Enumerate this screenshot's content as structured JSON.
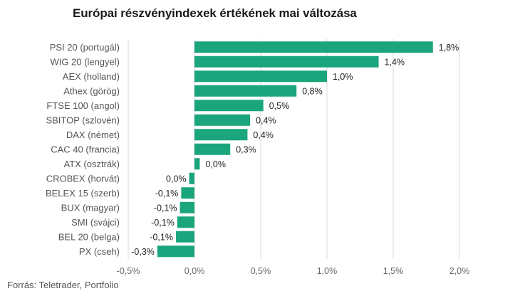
{
  "chart_data": {
    "type": "bar",
    "orientation": "horizontal",
    "title": "Európai részvényindexek értékének mai változása",
    "categories": [
      "PSI 20 (portugál)",
      "WIG 20 (lengyel)",
      "AEX (holland)",
      "Athex (görög)",
      "FTSE 100 (angol)",
      "SBITOP (szlovén)",
      "DAX (német)",
      "CAC 40 (francia)",
      "ATX (osztrák)",
      "CROBEX (horvát)",
      "BELEX 15 (szerb)",
      "BUX (magyar)",
      "SMI (svájci)",
      "BEL 20 (belga)",
      "PX (cseh)"
    ],
    "values": [
      1.8,
      1.39,
      1.0,
      0.77,
      0.52,
      0.42,
      0.4,
      0.27,
      0.04,
      -0.04,
      -0.1,
      -0.11,
      -0.13,
      -0.14,
      -0.28
    ],
    "value_labels": [
      "1,8%",
      "1,4%",
      "1,0%",
      "0,8%",
      "0,5%",
      "0,4%",
      "0,4%",
      "0,3%",
      "0,0%",
      "0,0%",
      "-0,1%",
      "-0,1%",
      "-0,1%",
      "-0,1%",
      "-0,3%"
    ],
    "xlim": [
      -0.5,
      2.0
    ],
    "x_ticks": [
      -0.5,
      0,
      0.5,
      1.0,
      1.5,
      2.0
    ],
    "x_tick_labels": [
      "-0,5%",
      "0,0%",
      "0,5%",
      "1,0%",
      "1,5%",
      "2,0%"
    ],
    "grid": "vertical",
    "bar_color": "#1aa57c",
    "source": "Forrás: Teletrader, Portfolio"
  }
}
